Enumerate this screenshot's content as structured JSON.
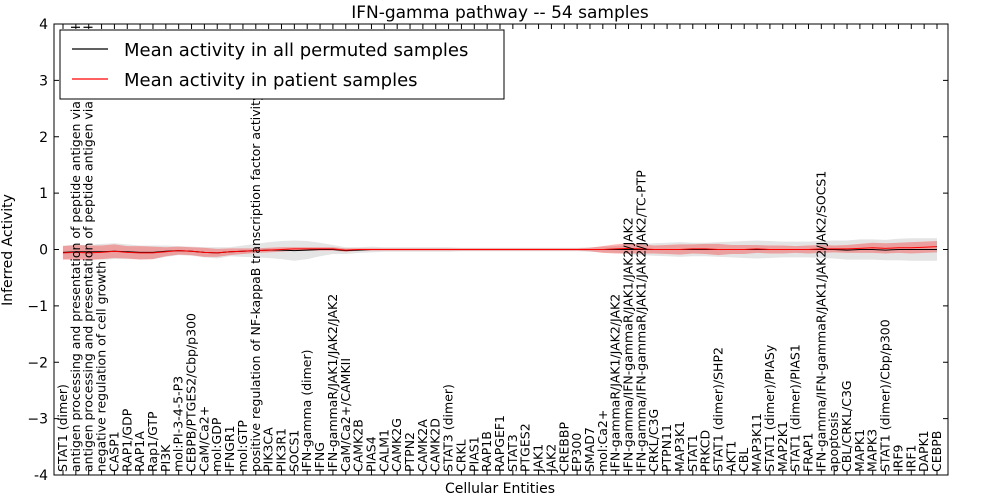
{
  "chart_data": {
    "type": "line",
    "title": "IFN-gamma pathway -- 54 samples",
    "xlabel": "Cellular Entities",
    "ylabel": "Inferred Activity",
    "ylim": [
      -4,
      4
    ],
    "yticks": [
      "-4",
      "−3",
      "−2",
      "−1",
      "0",
      "1",
      "2",
      "3",
      "4"
    ],
    "legend_position": "upper-left",
    "legend": [
      {
        "name": "Mean activity in all permuted samples",
        "color": "#000000"
      },
      {
        "name": "Mean activity in patient samples",
        "color": "#ff0000"
      }
    ],
    "categories": [
      "STAT1 (dimer)",
      "antigen processing and presentation of peptide antigen via MHC class I",
      "antigen processing and presentation of peptide antigen via MHC class II",
      "negative regulation of cell growth",
      "CASP1",
      "RAP1/GDP",
      "RAP1A",
      "Rap1/GTP",
      "PI3K",
      "mol:PI-3-4-5-P3",
      "CEBPB/PTGES2/Cbp/p300",
      "CaM/Ca2+",
      "mol:GDP",
      "IFNGR1",
      "mol:GTP",
      "positive regulation of NF-kappaB transcription factor activity",
      "PIK3CA",
      "PIK3R1",
      "SOCS1",
      "IFN-gamma (dimer)",
      "IFNG",
      "IFN-gammaR/JAK1/JAK2/JAK2",
      "CaM/Ca2+/CAMKII",
      "CAMK2B",
      "PIAS4",
      "CALM1",
      "CAMK2G",
      "PTPN2",
      "CAMK2A",
      "CAMK2D",
      "STAT3 (dimer)",
      "CRKL",
      "PIAS1",
      "RAP1B",
      "RAPGEF1",
      "STAT3",
      "PTGES2",
      "JAK1",
      "JAK2",
      "CREBBP",
      "EP300",
      "SMAD7",
      "mol:Ca2+",
      "IFN-gammaR/JAK1/JAK2/JAK2",
      "IFN-gamma/IFN-gammaR/JAK1/JAK2/JAK2",
      "IFN-gamma/IFN-gammaR/JAK1/JAK2/JAK2/TC-PTP",
      "CRKL/C3G",
      "PTPN11",
      "MAP3K1",
      "STAT1",
      "PRKCD",
      "STAT1 (dimer)/SHP2",
      "AKT1",
      "CBL",
      "MAP3K11",
      "STAT1 (dimer)/PIASy",
      "MAP2K1",
      "STAT1 (dimer)/PIAS1",
      "FRAP1",
      "IFN-gamma/IFN-gammaR/JAK1/JAK2/JAK2/SOCS1",
      "apoptosis",
      "CBL/CRKL/C3G",
      "MAPK1",
      "MAPK3",
      "STAT1 (dimer)/Cbp/p300",
      "IRF9",
      "IRF1",
      "DAPK1",
      "CEBPB"
    ],
    "series": [
      {
        "name": "Mean activity in all permuted samples",
        "color": "#000000",
        "values": [
          -0.05,
          -0.04,
          -0.04,
          -0.04,
          -0.03,
          -0.04,
          -0.05,
          -0.05,
          -0.03,
          -0.02,
          -0.03,
          -0.05,
          -0.06,
          -0.04,
          -0.03,
          -0.02,
          -0.01,
          -0.01,
          -0.02,
          -0.01,
          0.0,
          0.0,
          -0.02,
          -0.01,
          0.0,
          0.0,
          0.0,
          0.0,
          0.0,
          0.0,
          0.0,
          0.0,
          0.0,
          0.0,
          0.0,
          0.0,
          0.0,
          0.0,
          0.0,
          0.0,
          0.0,
          0.0,
          0.0,
          0.0,
          0.0,
          0.0,
          0.0,
          0.0,
          0.0,
          0.0,
          0.0,
          0.0,
          0.0,
          0.0,
          0.0,
          0.0,
          0.0,
          0.0,
          0.0,
          0.0,
          0.0,
          -0.01,
          0.0,
          0.0,
          -0.01,
          0.0,
          0.0,
          0.0,
          0.0
        ],
        "band": [
          0.12,
          0.12,
          0.12,
          0.14,
          0.14,
          0.13,
          0.12,
          0.12,
          0.1,
          0.08,
          0.08,
          0.09,
          0.1,
          0.08,
          0.1,
          0.12,
          0.14,
          0.16,
          0.18,
          0.16,
          0.12,
          0.08,
          0.06,
          0.05,
          0.05,
          0.04,
          0.04,
          0.04,
          0.04,
          0.04,
          0.04,
          0.03,
          0.03,
          0.03,
          0.03,
          0.03,
          0.03,
          0.03,
          0.03,
          0.03,
          0.03,
          0.04,
          0.05,
          0.06,
          0.08,
          0.1,
          0.11,
          0.12,
          0.13,
          0.12,
          0.12,
          0.13,
          0.14,
          0.15,
          0.16,
          0.15,
          0.14,
          0.14,
          0.14,
          0.15,
          0.16,
          0.17,
          0.18,
          0.18,
          0.18,
          0.19,
          0.2,
          0.2,
          0.2
        ]
      },
      {
        "name": "Mean activity in patient samples",
        "color": "#ff0000",
        "values": [
          -0.06,
          -0.05,
          -0.06,
          -0.05,
          -0.03,
          -0.05,
          -0.06,
          -0.06,
          -0.04,
          -0.02,
          -0.03,
          -0.05,
          -0.06,
          -0.04,
          -0.03,
          -0.02,
          -0.01,
          0.0,
          0.01,
          0.01,
          0.01,
          0.01,
          -0.01,
          0.0,
          0.0,
          0.0,
          0.0,
          0.0,
          0.0,
          0.0,
          0.0,
          0.0,
          0.0,
          0.0,
          0.0,
          0.0,
          0.0,
          0.0,
          0.0,
          0.0,
          0.0,
          0.0,
          0.0,
          0.01,
          0.02,
          0.01,
          0.0,
          0.0,
          0.0,
          0.01,
          0.01,
          0.0,
          0.0,
          0.0,
          0.01,
          0.0,
          0.0,
          0.0,
          0.0,
          0.01,
          0.01,
          0.01,
          0.02,
          0.03,
          0.02,
          0.03,
          0.03,
          0.04,
          0.05
        ],
        "band": [
          0.12,
          0.13,
          0.13,
          0.12,
          0.12,
          0.11,
          0.12,
          0.11,
          0.08,
          0.07,
          0.07,
          0.08,
          0.07,
          0.06,
          0.05,
          0.04,
          0.04,
          0.04,
          0.03,
          0.03,
          0.03,
          0.03,
          0.03,
          0.02,
          0.02,
          0.02,
          0.02,
          0.02,
          0.02,
          0.02,
          0.02,
          0.02,
          0.02,
          0.02,
          0.02,
          0.02,
          0.02,
          0.02,
          0.02,
          0.02,
          0.02,
          0.03,
          0.06,
          0.08,
          0.09,
          0.08,
          0.07,
          0.08,
          0.09,
          0.08,
          0.09,
          0.1,
          0.08,
          0.08,
          0.07,
          0.07,
          0.07,
          0.06,
          0.07,
          0.07,
          0.06,
          0.07,
          0.08,
          0.09,
          0.09,
          0.09,
          0.1,
          0.1,
          0.1
        ]
      }
    ]
  }
}
